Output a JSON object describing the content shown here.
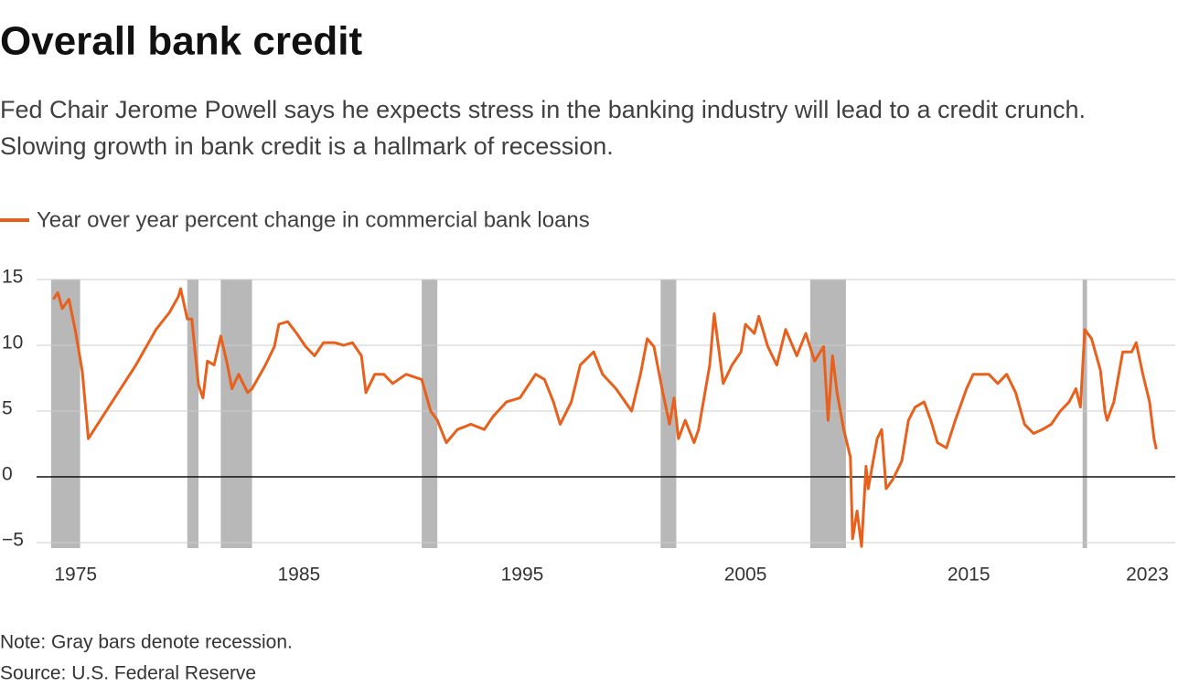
{
  "chart_data": {
    "type": "line",
    "title": "Overall bank credit",
    "subtitle": "Fed Chair Jerome Powell says he expects stress in the banking industry will lead to a credit crunch. Slowing growth in bank credit is a hallmark of recession.",
    "note": "Note: Gray bars denote recession.",
    "source": "Source: U.S. Federal Reserve",
    "xlim": [
      1973.25,
      2024.25
    ],
    "ylim": [
      -5,
      15
    ],
    "xticks": [
      1975,
      1985,
      1995,
      2005,
      2015,
      2023
    ],
    "yticks": [
      15,
      10,
      5,
      0,
      {
        "value": -5,
        "label": "−5"
      }
    ],
    "grid": true,
    "recession_color": "#b8b8b8",
    "recessions": [
      [
        1973.9,
        1975.2
      ],
      [
        1980.0,
        1980.5
      ],
      [
        1981.5,
        1982.9
      ],
      [
        1990.5,
        1991.2
      ],
      [
        2001.2,
        2001.9
      ],
      [
        2007.9,
        2009.5
      ],
      [
        2020.1,
        2020.3
      ]
    ],
    "series": [
      {
        "name": "Year over year percent change in commercial bank loans",
        "color": "#e8601c",
        "x": [
          1974.0,
          1974.2,
          1974.4,
          1974.7,
          1975.0,
          1975.3,
          1975.57,
          1976.9,
          1977.7,
          1978.6,
          1979.2,
          1979.6,
          1979.7,
          1980.0,
          1980.2,
          1980.5,
          1980.7,
          1980.9,
          1981.2,
          1981.5,
          1981.8,
          1982.0,
          1982.3,
          1982.7,
          1982.9,
          1983.5,
          1983.9,
          1984.1,
          1984.5,
          1984.9,
          1985.3,
          1985.7,
          1986.1,
          1986.6,
          1987.0,
          1987.4,
          1987.8,
          1988.0,
          1988.4,
          1988.8,
          1989.2,
          1989.8,
          1990.5,
          1990.9,
          1991.2,
          1991.6,
          1992.1,
          1992.7,
          1993.3,
          1993.7,
          1994.3,
          1994.9,
          1995.6,
          1996.0,
          1996.4,
          1996.7,
          1997.2,
          1997.6,
          1998.2,
          1998.6,
          1999.2,
          1999.9,
          2000.3,
          2000.6,
          2000.9,
          2001.3,
          2001.6,
          2001.8,
          2002.0,
          2002.3,
          2002.7,
          2002.9,
          2003.4,
          2003.6,
          2004.0,
          2004.4,
          2004.8,
          2005.0,
          2005.4,
          2005.6,
          2006.0,
          2006.4,
          2006.8,
          2007.3,
          2007.7,
          2008.1,
          2008.5,
          2008.7,
          2008.9,
          2009.1,
          2009.4,
          2009.7,
          2009.8,
          2010.0,
          2010.2,
          2010.4,
          2010.5,
          2010.9,
          2011.1,
          2011.3,
          2011.6,
          2012.0,
          2012.3,
          2012.6,
          2013.0,
          2013.3,
          2013.6,
          2014.0,
          2014.4,
          2014.9,
          2015.2,
          2015.9,
          2016.3,
          2016.7,
          2017.1,
          2017.5,
          2017.9,
          2018.3,
          2018.7,
          2019.1,
          2019.5,
          2019.8,
          2020.0,
          2020.2,
          2020.5,
          2020.9,
          2021.1,
          2021.2,
          2021.5,
          2021.9,
          2022.3,
          2022.5,
          2022.8,
          2023.1,
          2023.3,
          2023.4
        ],
        "values": [
          13.5,
          14.0,
          12.8,
          13.5,
          11.0,
          8.0,
          2.9,
          6.4,
          8.5,
          11.2,
          12.5,
          13.7,
          14.3,
          12.0,
          12.0,
          7.0,
          6.0,
          8.8,
          8.5,
          10.7,
          8.5,
          6.7,
          7.8,
          6.4,
          6.7,
          8.5,
          9.9,
          11.6,
          11.8,
          10.9,
          9.9,
          9.2,
          10.2,
          10.2,
          10.0,
          10.2,
          9.2,
          6.4,
          7.8,
          7.8,
          7.1,
          7.8,
          7.4,
          5.0,
          4.3,
          2.6,
          3.6,
          4.0,
          3.6,
          4.6,
          5.7,
          6.0,
          7.8,
          7.4,
          5.7,
          4.0,
          5.7,
          8.5,
          9.5,
          7.8,
          6.7,
          5.0,
          7.8,
          10.5,
          9.9,
          6.4,
          4.0,
          6.0,
          2.9,
          4.3,
          2.6,
          3.6,
          8.5,
          12.4,
          7.1,
          8.5,
          9.5,
          11.6,
          10.9,
          12.2,
          9.9,
          8.5,
          11.2,
          9.2,
          10.9,
          8.8,
          9.9,
          4.3,
          9.2,
          6.4,
          3.6,
          1.5,
          -4.7,
          -2.6,
          -5.3,
          0.8,
          -0.9,
          2.9,
          3.6,
          -0.9,
          -0.2,
          1.2,
          4.3,
          5.3,
          5.7,
          4.3,
          2.6,
          2.2,
          4.3,
          6.7,
          7.8,
          7.8,
          7.1,
          7.8,
          6.4,
          4.0,
          3.3,
          3.6,
          4.0,
          5.0,
          5.7,
          6.7,
          5.3,
          11.2,
          10.5,
          8.1,
          5.0,
          4.3,
          5.7,
          9.5,
          9.5,
          10.2,
          7.8,
          5.7,
          2.9,
          2.1
        ]
      }
    ]
  }
}
